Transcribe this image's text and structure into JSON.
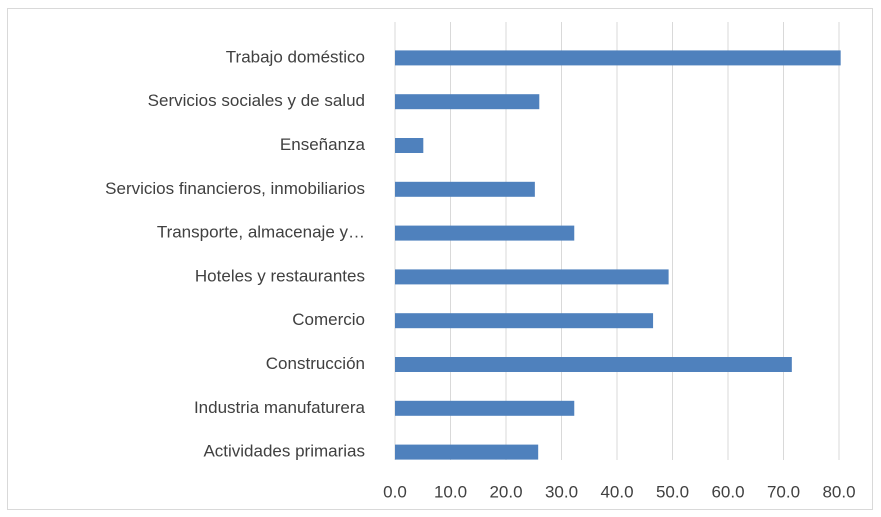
{
  "chart_data": {
    "type": "bar",
    "orientation": "horizontal",
    "categories": [
      "Trabajo doméstico",
      "Servicios sociales y de salud",
      "Enseñanza",
      "Servicios financieros, inmobiliarios",
      "Transporte, almacenaje y…",
      "Hoteles y restaurantes",
      "Comercio",
      "Construcción",
      "Industria manufaturera",
      "Actividades primarias"
    ],
    "values": [
      80.3,
      26.0,
      5.1,
      25.2,
      32.3,
      49.3,
      46.5,
      71.5,
      32.3,
      25.8
    ],
    "color": "#4f81bd",
    "xlim": [
      0,
      80
    ],
    "xticks": [
      {
        "value": 0,
        "label": "0.0"
      },
      {
        "value": 10,
        "label": "10.0"
      },
      {
        "value": 20,
        "label": "20.0"
      },
      {
        "value": 30,
        "label": "30.0"
      },
      {
        "value": 40,
        "label": "40.0"
      },
      {
        "value": 50,
        "label": "50.0"
      },
      {
        "value": 60,
        "label": "60.0"
      },
      {
        "value": 70,
        "label": "70.0"
      },
      {
        "value": 80,
        "label": "80.0"
      }
    ],
    "grid": true
  }
}
